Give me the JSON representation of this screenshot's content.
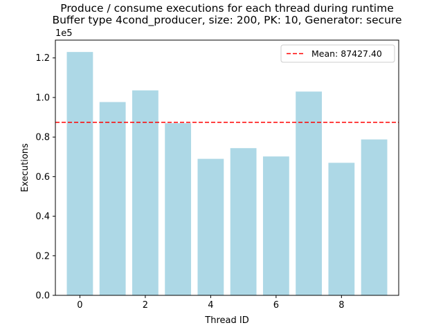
{
  "chart_data": {
    "type": "bar",
    "title_line1": "Produce / consume executions for each thread during runtime",
    "title_line2": "Buffer type 4cond_producer, size: 200, PK: 10, Generator: secure",
    "xlabel": "Thread ID",
    "ylabel": "Executions",
    "y_multiplier_label": "1e5",
    "x": [
      0,
      1,
      2,
      3,
      4,
      5,
      6,
      7,
      8,
      9
    ],
    "values": [
      123000,
      97700,
      103600,
      87000,
      69000,
      74400,
      70200,
      103000,
      67000,
      78800
    ],
    "bar_color": "#add8e6",
    "xlim": [
      -0.75,
      9.75
    ],
    "ylim": [
      0,
      129000
    ],
    "x_ticks": [
      0,
      2,
      4,
      6,
      8
    ],
    "x_tick_labels": [
      "0",
      "2",
      "4",
      "6",
      "8"
    ],
    "y_ticks": [
      0,
      20000,
      40000,
      60000,
      80000,
      100000,
      120000
    ],
    "y_tick_labels": [
      "0.0",
      "0.2",
      "0.4",
      "0.6",
      "0.8",
      "1.0",
      "1.2"
    ],
    "mean": {
      "value": 87427.4,
      "label": "Mean: 87427.40",
      "color": "#ff0000",
      "style": "dashed"
    },
    "legend_position": "top-right",
    "grid": false
  }
}
